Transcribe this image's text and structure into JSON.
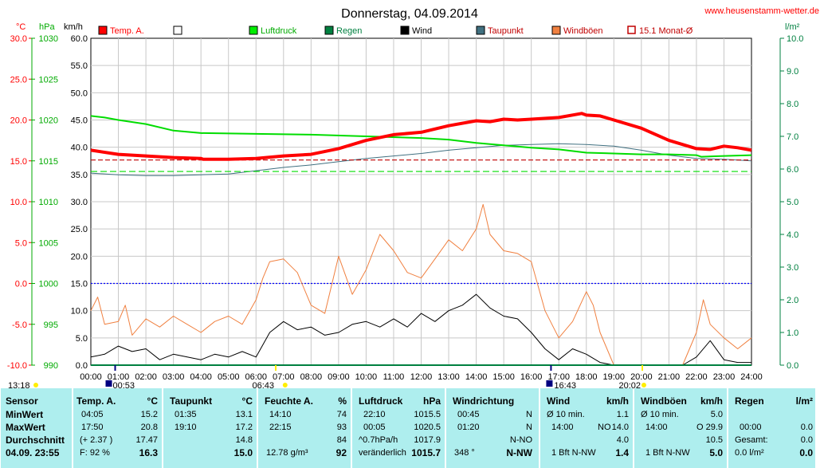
{
  "title": "Donnerstag, 04.09.2014",
  "website": "www.heusenstamm-wetter.de",
  "colors": {
    "temp": "#ff0000",
    "pressure": "#00dd00",
    "rain": "#008040",
    "wind": "#000000",
    "dewpoint": "#407080",
    "gusts": "#f08040",
    "monthavg": "#c00000",
    "axis_pressure": "#00aa00",
    "axis_rain": "#008040",
    "freeze": "#0000ff",
    "stats_bg": "#aeeeee"
  },
  "axes": {
    "temp_unit": "°C",
    "pressure_unit": "hPa",
    "wind_unit": "km/h",
    "rain_unit": "l/m²",
    "temp_ticks": [
      "30.0",
      "25.0",
      "20.0",
      "15.0",
      "10.0",
      "5.0",
      "0.0",
      "-5.0",
      "-10.0"
    ],
    "pressure_ticks": [
      "1030",
      "1025",
      "1020",
      "1015",
      "1010",
      "1005",
      "1000",
      "995",
      "990"
    ],
    "wind_ticks": [
      "60.0",
      "55.0",
      "50.0",
      "45.0",
      "40.0",
      "35.0",
      "30.0",
      "25.0",
      "20.0",
      "15.0",
      "10.0",
      "5.0",
      "0.0"
    ],
    "rain_ticks": [
      "10.0",
      "9.0",
      "8.0",
      "7.0",
      "6.0",
      "5.0",
      "4.0",
      "3.0",
      "2.0",
      "1.0",
      "0.0"
    ],
    "time_ticks": [
      "00:00",
      "01:00",
      "02:00",
      "03:00",
      "04:00",
      "05:00",
      "06:00",
      "07:00",
      "08:00",
      "09:00",
      "10:00",
      "11:00",
      "12:00",
      "13:00",
      "14:00",
      "15:00",
      "16:00",
      "17:00",
      "18:00",
      "19:00",
      "20:00",
      "21:00",
      "22:00",
      "23:00",
      "24:00"
    ]
  },
  "legend": [
    {
      "label": "Temp. A.",
      "color": "#ff0000",
      "style": "filled"
    },
    {
      "label": "",
      "color": "#ffffff",
      "style": "empty"
    },
    {
      "label": "Luftdruck",
      "color": "#00ee00",
      "style": "filled"
    },
    {
      "label": "Regen",
      "color": "#008040",
      "style": "filled"
    },
    {
      "label": "Wind",
      "color": "#000000",
      "style": "filled"
    },
    {
      "label": "Taupunkt",
      "color": "#407080",
      "style": "filled"
    },
    {
      "label": "Windböen",
      "color": "#f08040",
      "style": "filled"
    },
    {
      "label": "15.1 Monat-Ø",
      "color": "#c00000",
      "style": "outline"
    }
  ],
  "time_markers": {
    "sunrise_low": "13:18",
    "moonset": "00:53",
    "sunrise": "06:43",
    "sunset_icon": "07:00",
    "moonrise": "16:43",
    "sunset": "20:02"
  },
  "chart_data": {
    "type": "line",
    "x_unit": "hour",
    "xlim": [
      0,
      24
    ],
    "series": [
      {
        "name": "Temp. A.",
        "axis": "°C",
        "x": [
          0,
          1,
          2,
          3,
          4,
          4.08,
          5,
          6,
          7,
          8,
          9,
          10,
          11,
          12,
          13,
          14,
          14.5,
          15,
          15.5,
          16,
          17,
          17.83,
          18,
          18.5,
          19,
          20,
          21,
          22,
          22.5,
          23,
          23.5,
          24
        ],
        "values": [
          16.3,
          15.8,
          15.6,
          15.4,
          15.3,
          15.2,
          15.2,
          15.3,
          15.6,
          15.8,
          16.5,
          17.5,
          18.2,
          18.5,
          19.3,
          19.9,
          19.8,
          20.1,
          20.0,
          20.1,
          20.3,
          20.8,
          20.6,
          20.5,
          20.0,
          19.0,
          17.5,
          16.5,
          16.4,
          16.8,
          16.6,
          16.3
        ]
      },
      {
        "name": "Luftdruck",
        "axis": "hPa",
        "x": [
          0,
          0.5,
          1,
          2,
          3,
          4,
          6,
          8,
          10,
          12,
          13,
          14,
          15,
          16,
          17,
          18,
          19,
          20,
          21,
          22,
          22.17,
          23,
          24
        ],
        "values": [
          1020.5,
          1020.3,
          1020.0,
          1019.5,
          1018.7,
          1018.4,
          1018.3,
          1018.2,
          1018.0,
          1017.8,
          1017.6,
          1017.2,
          1016.9,
          1016.6,
          1016.4,
          1016.0,
          1015.9,
          1015.8,
          1015.8,
          1015.7,
          1015.5,
          1015.6,
          1015.7
        ]
      },
      {
        "name": "Taupunkt",
        "axis": "°C",
        "x": [
          0,
          1,
          2,
          3,
          4,
          5,
          6,
          7,
          8,
          9,
          10,
          11,
          12,
          13,
          14,
          15,
          16,
          17,
          18,
          19,
          20,
          21,
          22,
          23,
          24
        ],
        "values": [
          13.5,
          13.3,
          13.2,
          13.2,
          13.3,
          13.4,
          13.8,
          14.2,
          14.5,
          14.9,
          15.3,
          15.6,
          15.9,
          16.3,
          16.6,
          16.9,
          17.0,
          17.1,
          17.0,
          16.8,
          16.3,
          15.7,
          15.3,
          15.2,
          15.0
        ]
      },
      {
        "name": "15.1 Monat-Ø",
        "axis": "°C",
        "x": [
          0,
          24
        ],
        "values": [
          15.1,
          15.1
        ]
      },
      {
        "name": "Regen",
        "axis": "l/m²",
        "x": [
          0,
          24
        ],
        "values": [
          0.0,
          0.0
        ]
      },
      {
        "name": "Wind",
        "axis": "km/h",
        "x": [
          0,
          0.5,
          1,
          1.5,
          2,
          2.5,
          3,
          3.5,
          4,
          4.5,
          5,
          5.5,
          6,
          6.5,
          7,
          7.5,
          8,
          8.5,
          9,
          9.5,
          10,
          10.5,
          11,
          11.5,
          12,
          12.5,
          13,
          13.5,
          14,
          14.5,
          15,
          15.5,
          16,
          16.5,
          17,
          17.5,
          18,
          18.5,
          19,
          20,
          21,
          21.5,
          22,
          22.5,
          23,
          23.5,
          24
        ],
        "values": [
          1.5,
          2.0,
          3.5,
          2.5,
          3.0,
          1.0,
          2.0,
          1.5,
          1.0,
          2.0,
          1.5,
          2.5,
          1.5,
          6.0,
          8.0,
          6.5,
          7.0,
          5.5,
          6.0,
          7.5,
          8.0,
          7.0,
          8.5,
          7.0,
          9.5,
          8.0,
          10.0,
          11.0,
          13.0,
          10.5,
          9.0,
          8.5,
          6.0,
          3.0,
          1.0,
          3.0,
          2.0,
          0.5,
          0.0,
          0.0,
          0.0,
          0.0,
          1.5,
          4.5,
          1.0,
          0.5,
          0.5
        ]
      },
      {
        "name": "Windböen",
        "axis": "km/h",
        "x": [
          0,
          0.25,
          0.5,
          1,
          1.25,
          1.5,
          2,
          2.5,
          3,
          3.5,
          4,
          4.5,
          5,
          5.5,
          6,
          6.25,
          6.5,
          7,
          7.5,
          8,
          8.5,
          9,
          9.5,
          10,
          10.5,
          11,
          11.5,
          12,
          12.5,
          13,
          13.5,
          14,
          14.25,
          14.5,
          15,
          15.5,
          16,
          16.5,
          17,
          17.5,
          18,
          18.25,
          18.5,
          19,
          20,
          21,
          21.5,
          22,
          22.25,
          22.5,
          23,
          23.5,
          24
        ],
        "values": [
          10.0,
          12.5,
          7.5,
          8.0,
          11.0,
          5.5,
          8.5,
          7.0,
          9.0,
          7.5,
          6.0,
          8.0,
          9.0,
          7.5,
          12.0,
          16.0,
          19.0,
          19.5,
          17.0,
          11.0,
          9.5,
          20.0,
          13.0,
          17.5,
          24.0,
          21.0,
          17.0,
          16.0,
          19.5,
          23.0,
          21.0,
          25.0,
          29.5,
          24.0,
          21.0,
          20.5,
          19.0,
          10.0,
          5.0,
          8.0,
          13.5,
          11.0,
          6.0,
          0.0,
          0.0,
          0.0,
          0.0,
          6.0,
          12.0,
          7.5,
          5.0,
          3.0,
          5.0
        ]
      }
    ]
  },
  "stats": {
    "sensor": {
      "header": "Sensor",
      "rows": [
        "MinWert",
        "MaxWert",
        "Durchschnitt"
      ],
      "footer": "04.09.  23:55"
    },
    "temp": {
      "header": "Temp. A.",
      "unit": "°C",
      "min_time": "04:05",
      "min": "15.2",
      "max_time": "17:50",
      "max": "20.8",
      "avg_note": "(+ 2.37 )",
      "avg": "17.47",
      "cur_note": "F: 92 %",
      "cur": "16.3"
    },
    "dew": {
      "header": "Taupunkt",
      "unit": "°C",
      "min_time": "01:35",
      "min": "13.1",
      "max_time": "19:10",
      "max": "17.2",
      "avg": "14.8",
      "cur": "15.0"
    },
    "hum": {
      "header": "Feuchte A.",
      "unit": "%",
      "min_time": "14:10",
      "min": "74",
      "max_time": "22:15",
      "max": "93",
      "avg": "84",
      "cur_note": "12.78 g/m³",
      "cur": "92"
    },
    "press": {
      "header": "Luftdruck",
      "unit": "hPa",
      "min_time": "22:10",
      "min": "1015.5",
      "max_time": "00:05",
      "max": "1020.5",
      "avg_note": "^0.7hPa/h",
      "avg": "1017.9",
      "cur_note": "veränderlich",
      "cur": "1015.7"
    },
    "dir": {
      "header": "Windrichtung",
      "min_time": "00:45",
      "min": "N",
      "max_time": "01:20",
      "max": "N",
      "avg": "N-NO",
      "cur_note": "348 °",
      "cur": "N-NW"
    },
    "wind": {
      "header": "Wind",
      "unit": "km/h",
      "min_note": "Ø 10 min.",
      "min": "1.1",
      "max_time": "14:00",
      "max_dir": "NO",
      "max": "14.0",
      "avg": "4.0",
      "cur_note": "1 Bft N-NW",
      "cur": "1.4"
    },
    "gust": {
      "header": "Windböen",
      "unit": "km/h",
      "min_note": "Ø 10 min.",
      "min": "5.0",
      "max_time": "14:00",
      "max_dir": "O",
      "max": "29.9",
      "avg": "10.5",
      "cur_note": "1 Bft N-NW",
      "cur": "5.0"
    },
    "rain": {
      "header": "Regen",
      "unit": "l/m²",
      "min_time": "00:00",
      "min": "0.0",
      "total_label": "Gesamt:",
      "avg": "0.0",
      "cur_note": "0.0 l/m²",
      "cur": "0.0"
    }
  }
}
